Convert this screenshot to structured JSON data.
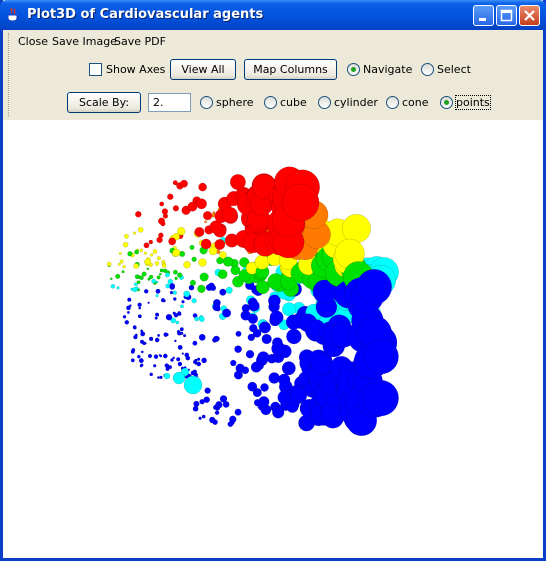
{
  "window": {
    "title": "Plot3D of Cardiovascular agents",
    "icon": "java-cup-icon"
  },
  "menu": {
    "items": [
      "Close",
      "Save Image",
      "Save PDF"
    ]
  },
  "controls": {
    "show_axes_label": "Show Axes",
    "show_axes_checked": false,
    "view_all_label": "View All",
    "map_columns_label": "Map Columns",
    "mode_options": [
      "Navigate",
      "Select"
    ],
    "mode_selected": "Navigate",
    "scale_by_label": "Scale By:",
    "scale_value": "2.",
    "shape_options": [
      "sphere",
      "cube",
      "cylinder",
      "cone",
      "points"
    ],
    "shape_selected": "points"
  },
  "colors": {
    "series": [
      "#ff0000",
      "#ff7a00",
      "#ffff00",
      "#00e000",
      "#00ffff",
      "#0000ff"
    ]
  }
}
